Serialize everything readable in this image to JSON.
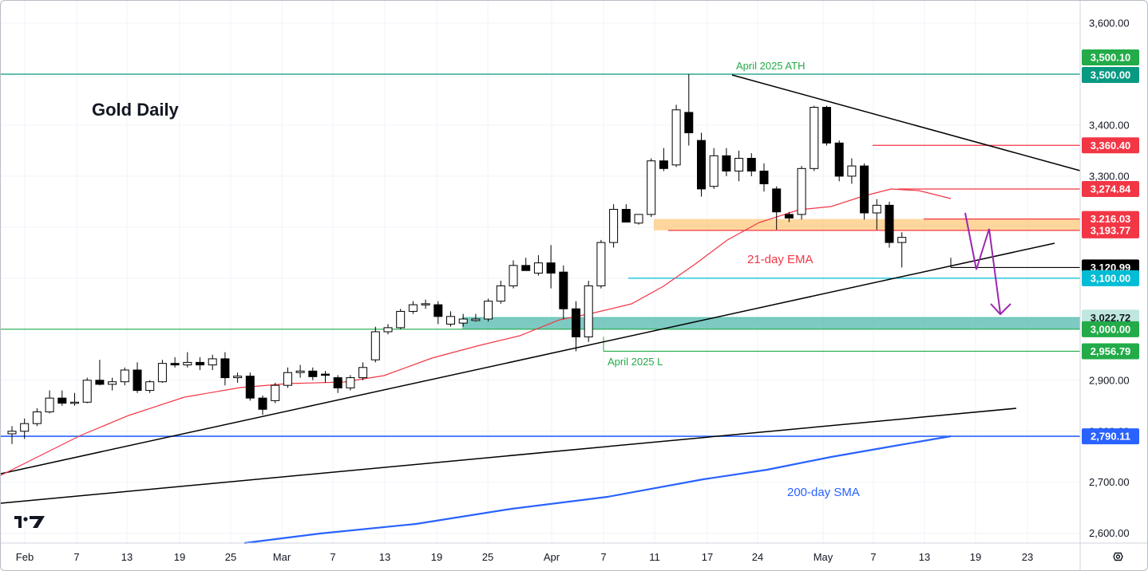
{
  "chart_data": {
    "type": "candlestick",
    "title": "Gold Daily",
    "ylim": [
      2580,
      3640
    ],
    "y_ticks": [
      "3,600.00",
      "3,500.00",
      "3,400.00",
      "3,300.00",
      "3,200.00",
      "3,100.00",
      "3,000.00",
      "2,900.00",
      "2,800.00",
      "2,700.00",
      "2,600.00"
    ],
    "x_ticks": [
      "Feb",
      "7",
      "13",
      "19",
      "25",
      "Mar",
      "7",
      "13",
      "19",
      "25",
      "Apr",
      "7",
      "11",
      "17",
      "24",
      "May",
      "7",
      "13",
      "19",
      "23"
    ],
    "candles": [
      {
        "o": 2795,
        "h": 2810,
        "l": 2775,
        "c": 2800
      },
      {
        "o": 2800,
        "h": 2825,
        "l": 2785,
        "c": 2815
      },
      {
        "o": 2815,
        "h": 2845,
        "l": 2810,
        "c": 2838
      },
      {
        "o": 2838,
        "h": 2880,
        "l": 2835,
        "c": 2865
      },
      {
        "o": 2865,
        "h": 2880,
        "l": 2850,
        "c": 2855
      },
      {
        "o": 2855,
        "h": 2875,
        "l": 2850,
        "c": 2857
      },
      {
        "o": 2857,
        "h": 2905,
        "l": 2855,
        "c": 2900
      },
      {
        "o": 2900,
        "h": 2940,
        "l": 2890,
        "c": 2892
      },
      {
        "o": 2892,
        "h": 2905,
        "l": 2880,
        "c": 2897
      },
      {
        "o": 2897,
        "h": 2925,
        "l": 2890,
        "c": 2920
      },
      {
        "o": 2920,
        "h": 2935,
        "l": 2875,
        "c": 2880
      },
      {
        "o": 2880,
        "h": 2900,
        "l": 2875,
        "c": 2897
      },
      {
        "o": 2897,
        "h": 2940,
        "l": 2895,
        "c": 2933
      },
      {
        "o": 2933,
        "h": 2945,
        "l": 2925,
        "c": 2930
      },
      {
        "o": 2930,
        "h": 2955,
        "l": 2925,
        "c": 2935
      },
      {
        "o": 2935,
        "h": 2945,
        "l": 2920,
        "c": 2930
      },
      {
        "o": 2930,
        "h": 2950,
        "l": 2920,
        "c": 2942
      },
      {
        "o": 2942,
        "h": 2955,
        "l": 2890,
        "c": 2905
      },
      {
        "o": 2905,
        "h": 2915,
        "l": 2895,
        "c": 2908
      },
      {
        "o": 2908,
        "h": 2915,
        "l": 2860,
        "c": 2865
      },
      {
        "o": 2865,
        "h": 2870,
        "l": 2832,
        "c": 2843
      },
      {
        "o": 2860,
        "h": 2895,
        "l": 2855,
        "c": 2890
      },
      {
        "o": 2890,
        "h": 2925,
        "l": 2885,
        "c": 2915
      },
      {
        "o": 2915,
        "h": 2930,
        "l": 2905,
        "c": 2918
      },
      {
        "o": 2918,
        "h": 2925,
        "l": 2900,
        "c": 2907
      },
      {
        "o": 2912,
        "h": 2918,
        "l": 2895,
        "c": 2910
      },
      {
        "o": 2905,
        "h": 2910,
        "l": 2875,
        "c": 2885
      },
      {
        "o": 2885,
        "h": 2910,
        "l": 2880,
        "c": 2905
      },
      {
        "o": 2905,
        "h": 2935,
        "l": 2900,
        "c": 2925
      },
      {
        "o": 2940,
        "h": 3005,
        "l": 2935,
        "c": 2995
      },
      {
        "o": 2995,
        "h": 3010,
        "l": 2990,
        "c": 3003
      },
      {
        "o": 3003,
        "h": 3040,
        "l": 3000,
        "c": 3035
      },
      {
        "o": 3035,
        "h": 3055,
        "l": 3030,
        "c": 3048
      },
      {
        "o": 3048,
        "h": 3058,
        "l": 3040,
        "c": 3050
      },
      {
        "o": 3048,
        "h": 3055,
        "l": 3010,
        "c": 3025
      },
      {
        "o": 3010,
        "h": 3035,
        "l": 3005,
        "c": 3025
      },
      {
        "o": 3012,
        "h": 3030,
        "l": 3005,
        "c": 3020
      },
      {
        "o": 3017,
        "h": 3030,
        "l": 3015,
        "c": 3020
      },
      {
        "o": 3020,
        "h": 3060,
        "l": 3015,
        "c": 3055
      },
      {
        "o": 3055,
        "h": 3095,
        "l": 3050,
        "c": 3085
      },
      {
        "o": 3085,
        "h": 3135,
        "l": 3080,
        "c": 3125
      },
      {
        "o": 3125,
        "h": 3140,
        "l": 3115,
        "c": 3115
      },
      {
        "o": 3110,
        "h": 3145,
        "l": 3105,
        "c": 3130
      },
      {
        "o": 3130,
        "h": 3165,
        "l": 3080,
        "c": 3110
      },
      {
        "o": 3112,
        "h": 3125,
        "l": 3020,
        "c": 3040
      },
      {
        "o": 3040,
        "h": 3055,
        "l": 2957,
        "c": 2985
      },
      {
        "o": 2985,
        "h": 3095,
        "l": 2975,
        "c": 3085
      },
      {
        "o": 3085,
        "h": 3175,
        "l": 3080,
        "c": 3170
      },
      {
        "o": 3170,
        "h": 3245,
        "l": 3160,
        "c": 3235
      },
      {
        "o": 3235,
        "h": 3245,
        "l": 3215,
        "c": 3210
      },
      {
        "o": 3208,
        "h": 3225,
        "l": 3205,
        "c": 3225
      },
      {
        "o": 3225,
        "h": 3335,
        "l": 3220,
        "c": 3330
      },
      {
        "o": 3330,
        "h": 3355,
        "l": 3310,
        "c": 3315
      },
      {
        "o": 3322,
        "h": 3440,
        "l": 3318,
        "c": 3430
      },
      {
        "o": 3425,
        "h": 3500,
        "l": 3360,
        "c": 3385
      },
      {
        "o": 3370,
        "h": 3385,
        "l": 3260,
        "c": 3275
      },
      {
        "o": 3280,
        "h": 3355,
        "l": 3275,
        "c": 3340
      },
      {
        "o": 3340,
        "h": 3355,
        "l": 3300,
        "c": 3310
      },
      {
        "o": 3310,
        "h": 3350,
        "l": 3290,
        "c": 3335
      },
      {
        "o": 3335,
        "h": 3345,
        "l": 3300,
        "c": 3310
      },
      {
        "o": 3310,
        "h": 3325,
        "l": 3270,
        "c": 3285
      },
      {
        "o": 3275,
        "h": 3280,
        "l": 3195,
        "c": 3230
      },
      {
        "o": 3225,
        "h": 3230,
        "l": 3210,
        "c": 3218
      },
      {
        "o": 3225,
        "h": 3320,
        "l": 3215,
        "c": 3315
      },
      {
        "o": 3315,
        "h": 3438,
        "l": 3310,
        "c": 3435
      },
      {
        "o": 3435,
        "h": 3438,
        "l": 3360,
        "c": 3365
      },
      {
        "o": 3365,
        "h": 3370,
        "l": 3290,
        "c": 3300
      },
      {
        "o": 3300,
        "h": 3335,
        "l": 3285,
        "c": 3320
      },
      {
        "o": 3320,
        "h": 3325,
        "l": 3215,
        "c": 3228
      },
      {
        "o": 3228,
        "h": 3255,
        "l": 3195,
        "c": 3243
      },
      {
        "o": 3243,
        "h": 3250,
        "l": 3160,
        "c": 3170
      },
      {
        "o": 3170,
        "h": 3190,
        "l": 3121,
        "c": 3180
      }
    ],
    "series": [
      {
        "name": "21-day EMA",
        "color": "#f23645",
        "values": [
          [
            0,
            2720
          ],
          [
            7,
            2770
          ],
          [
            14,
            2820
          ],
          [
            21,
            2860
          ],
          [
            30,
            2890
          ],
          [
            38,
            2940
          ],
          [
            44,
            3000
          ],
          [
            47,
            3040
          ],
          [
            52,
            3110
          ],
          [
            58,
            3200
          ],
          [
            63,
            3225
          ],
          [
            67,
            3270
          ],
          [
            70,
            3280
          ],
          [
            74,
            3250
          ]
        ]
      },
      {
        "name": "200-day SMA",
        "color": "#2962ff",
        "values": [
          [
            18,
            2575
          ],
          [
            30,
            2610
          ],
          [
            45,
            2665
          ],
          [
            55,
            2705
          ],
          [
            65,
            2760
          ],
          [
            74,
            2790
          ]
        ]
      }
    ],
    "trendlines": [
      {
        "from": [
          0,
          2720
        ],
        "to": [
          81,
          3208
        ],
        "color": "#000000"
      },
      {
        "from": [
          0,
          2660
        ],
        "to": [
          79,
          2842
        ],
        "color": "#000000"
      },
      {
        "from": [
          56,
          3500
        ],
        "to": [
          84,
          3310
        ],
        "color": "#000000"
      }
    ],
    "levels": [
      {
        "value": 3500.0,
        "label": "3,500.00",
        "color": "#089981"
      },
      {
        "value": 3500.1,
        "label": "3,500.10",
        "color": "#22ab48"
      },
      {
        "value": 3360.4,
        "label": "3,360.40",
        "color": "#f23645"
      },
      {
        "value": 3274.84,
        "label": "3,274.84",
        "color": "#f23645"
      },
      {
        "value": 3216.03,
        "label": "3,216.03",
        "color": "#f23645"
      },
      {
        "value": 3193.77,
        "label": "3,193.77",
        "color": "#f23645"
      },
      {
        "value": 3120.99,
        "label": "3,120.99",
        "color": "#000000"
      },
      {
        "value": 3100.0,
        "label": "3,100.00",
        "color": "#00bcd4"
      },
      {
        "value": 3022.72,
        "label": "3,022.72",
        "color": "#5ec6b4"
      },
      {
        "value": 3000.0,
        "label": "3,000.00",
        "color": "#22ab48"
      },
      {
        "value": 2956.79,
        "label": "2,956.79",
        "color": "#22ab48"
      },
      {
        "value": 2790.11,
        "label": "2,790.11",
        "color": "#2962ff"
      }
    ],
    "zones": [
      {
        "from": 3193.77,
        "to": 3216.03,
        "color": "#ffb74d"
      },
      {
        "from": 3000.0,
        "to": 3022.72,
        "color": "#26a69a"
      }
    ],
    "projection": {
      "color": "#9c27b0",
      "points": [
        [
          76,
          3218
        ],
        [
          78,
          3120
        ],
        [
          79,
          3195
        ],
        [
          81,
          3015
        ]
      ]
    },
    "annotations": [
      {
        "text": "April 2025 ATH",
        "color": "#22ab48"
      },
      {
        "text": "21-day EMA",
        "color": "#f23645"
      },
      {
        "text": "April 2025 L",
        "color": "#22ab48"
      },
      {
        "text": "200-day SMA",
        "color": "#2962ff"
      }
    ],
    "colors": {
      "up_body": "#ffffff",
      "down_body": "#000000",
      "grid": "#f0f3fa",
      "axis_text": "#131722"
    }
  },
  "toolbar": {
    "logo_icon": "tradingview-logo-icon",
    "settings_icon": "settings-icon"
  }
}
